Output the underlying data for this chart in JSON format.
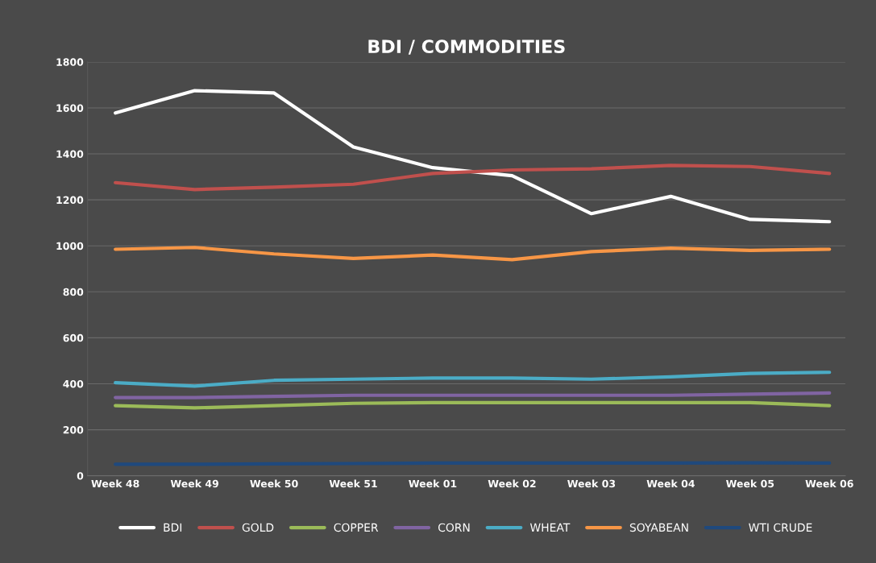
{
  "chart_data": {
    "type": "line",
    "title": "BDI / COMMODITIES",
    "categories": [
      "Week 48",
      "Week 49",
      "Week 50",
      "Week 51",
      "Week 01",
      "Week 02",
      "Week 03",
      "Week 04",
      "Week 05",
      "Week 06"
    ],
    "series": [
      {
        "name": "BDI",
        "color": "#ffffff",
        "values": [
          1578,
          1675,
          1665,
          1430,
          1340,
          1305,
          1140,
          1215,
          1115,
          1105
        ]
      },
      {
        "name": "GOLD",
        "color": "#c0504d",
        "values": [
          1275,
          1245,
          1255,
          1268,
          1315,
          1330,
          1335,
          1350,
          1345,
          1315
        ]
      },
      {
        "name": "COPPER",
        "color": "#9bbb59",
        "values": [
          305,
          295,
          305,
          315,
          318,
          318,
          318,
          318,
          318,
          305
        ]
      },
      {
        "name": "CORN",
        "color": "#8064a2",
        "values": [
          340,
          340,
          345,
          350,
          350,
          350,
          350,
          350,
          355,
          360
        ]
      },
      {
        "name": "WHEAT",
        "color": "#4bacc6",
        "values": [
          405,
          390,
          415,
          420,
          425,
          425,
          420,
          430,
          445,
          450
        ]
      },
      {
        "name": "SOYABEAN",
        "color": "#f79646",
        "values": [
          985,
          993,
          965,
          945,
          960,
          940,
          975,
          990,
          980,
          985
        ]
      },
      {
        "name": "WTI CRUDE",
        "color": "#1f497d",
        "values": [
          50,
          50,
          52,
          53,
          55,
          55,
          55,
          55,
          56,
          55
        ]
      }
    ],
    "ylim": [
      0,
      1800
    ],
    "yticks": [
      0,
      200,
      400,
      600,
      800,
      1000,
      1200,
      1400,
      1600,
      1800
    ],
    "grid": "y",
    "legend": "bottom",
    "marker": "none",
    "line_style": "solid"
  }
}
